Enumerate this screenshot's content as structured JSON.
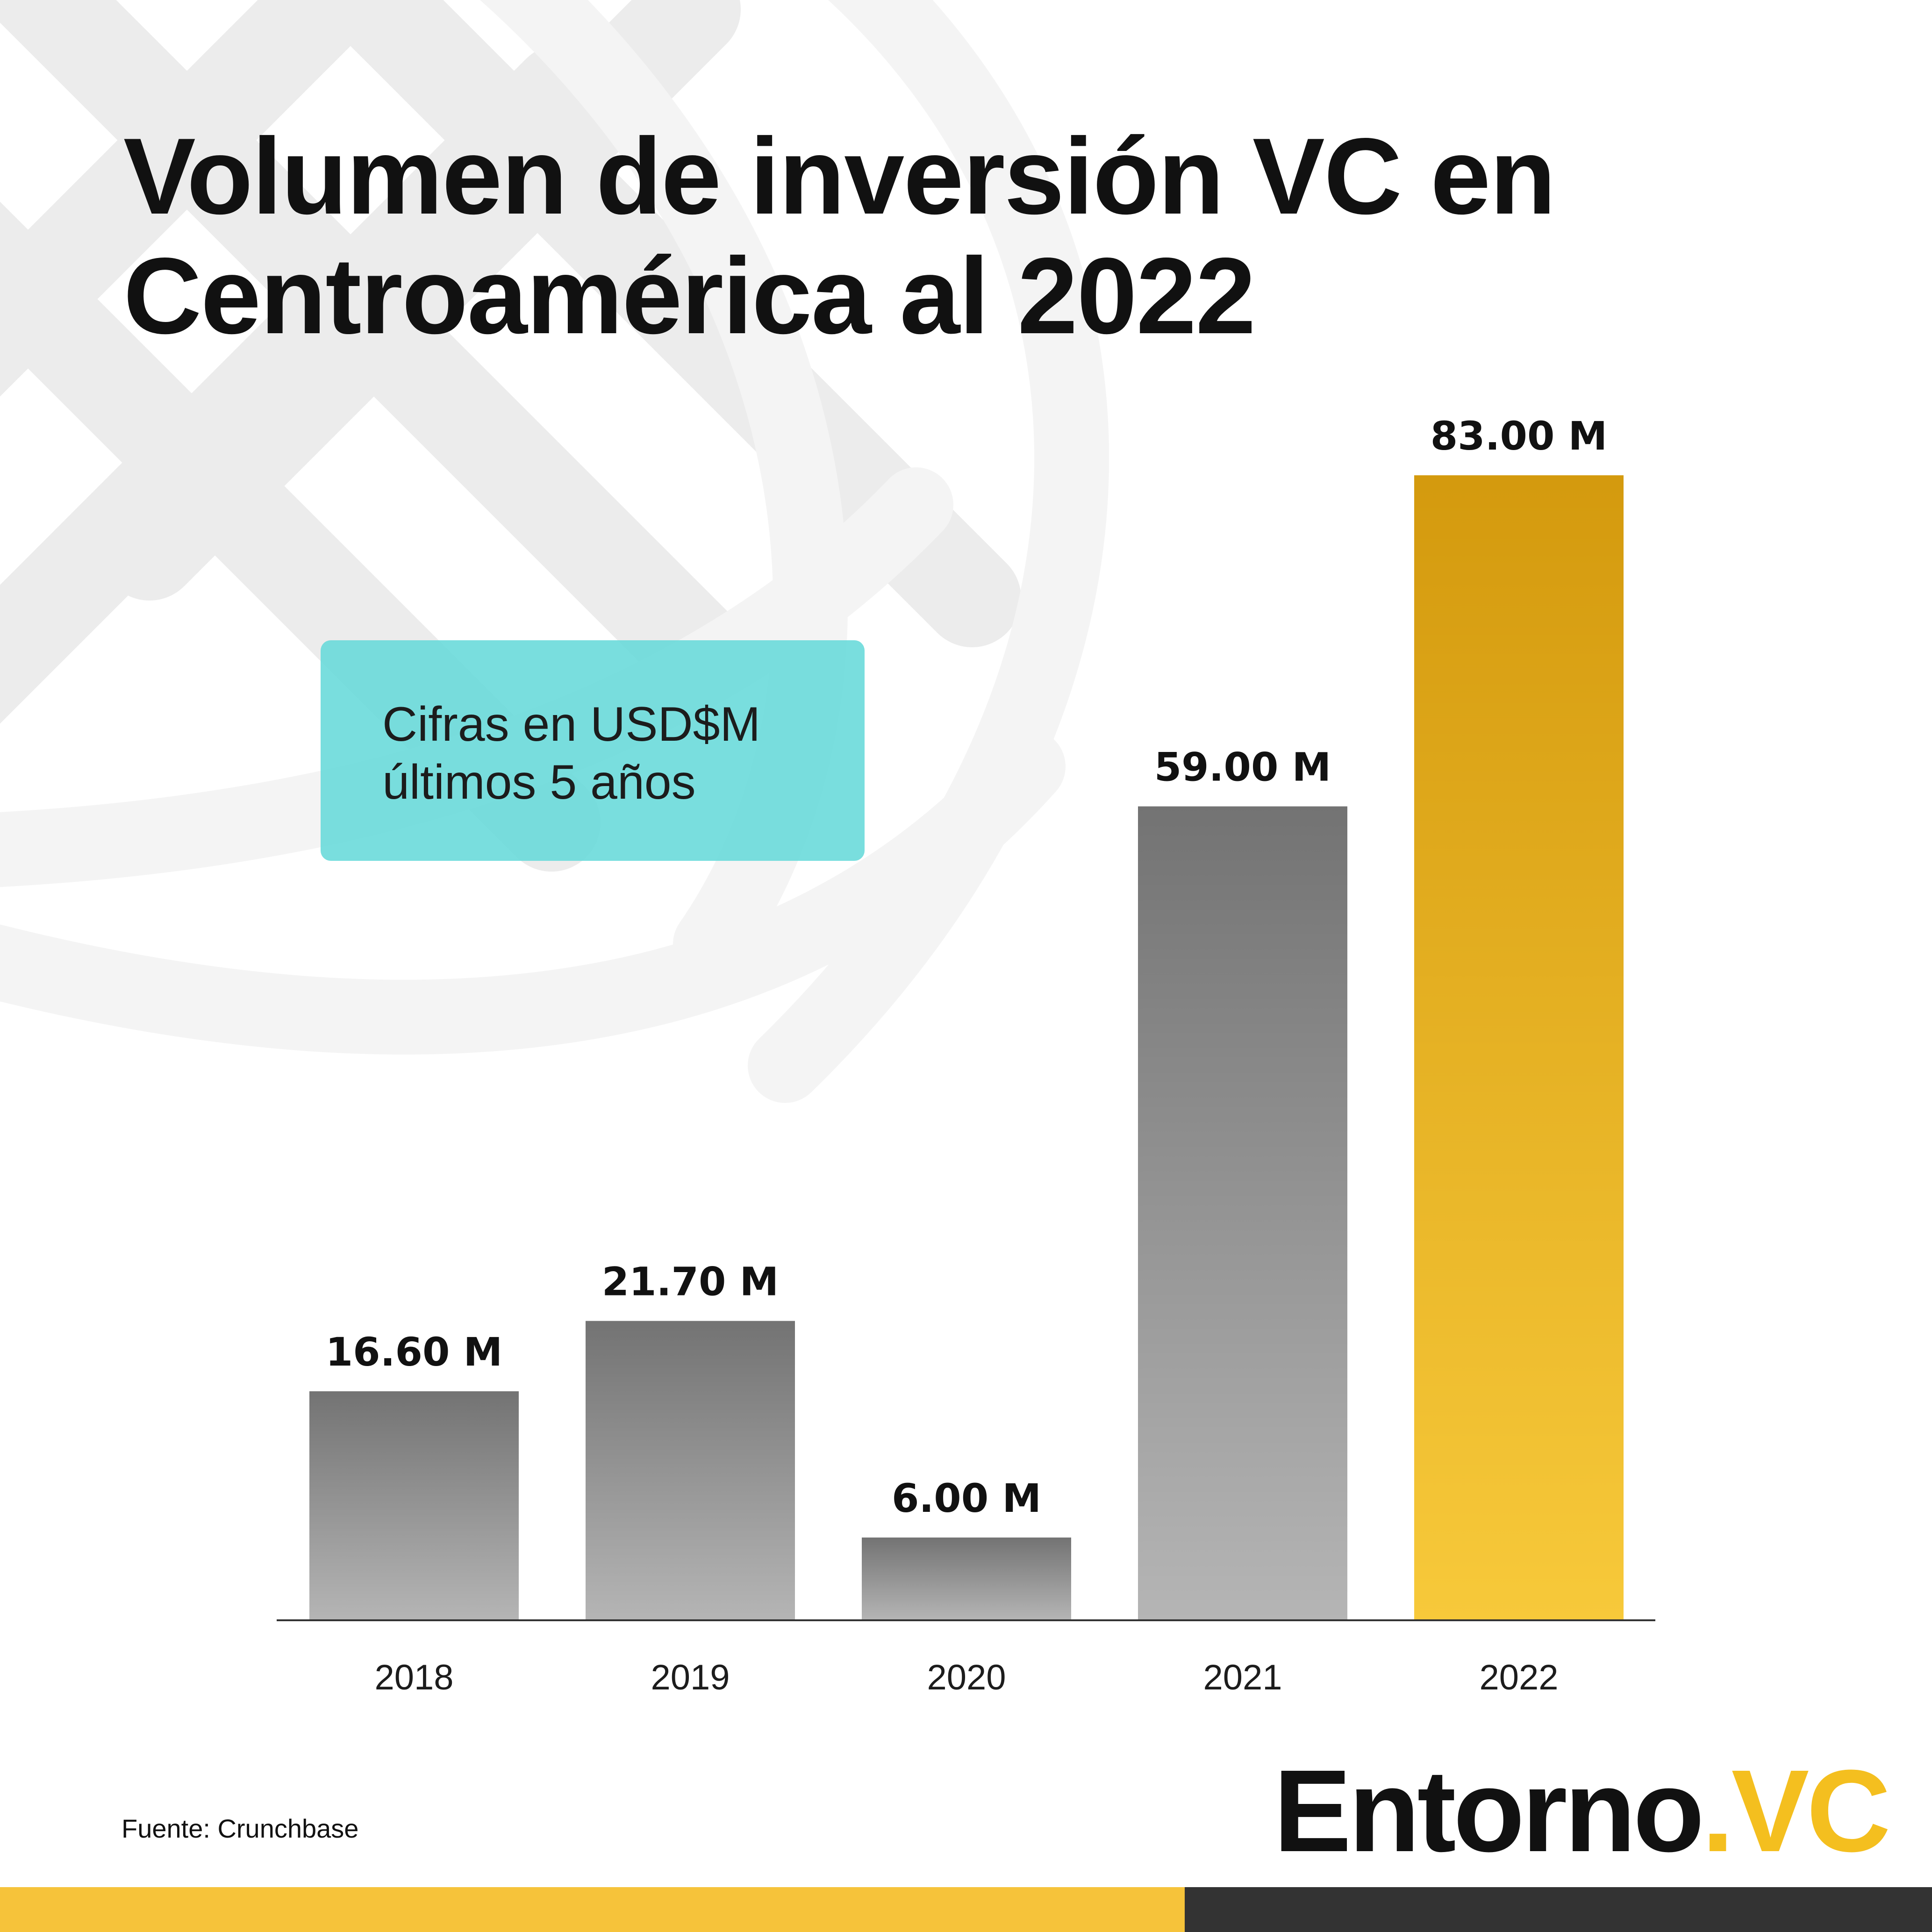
{
  "title": {
    "line1": "Volumen de inversión VC en",
    "line2": "Centroamérica al 2022"
  },
  "note": {
    "line1": "Cifras en USD$M",
    "line2": "últimos 5 años"
  },
  "source": "Fuente: Crunchbase",
  "logo": {
    "word": "Entorno",
    "dot": ".",
    "suffix": "VC"
  },
  "colors": {
    "highlight": "#f4bf1f",
    "bar_gray_top": "#737373",
    "bar_gray_bottom": "#b5b5b5",
    "bar_gold_top": "#d49a0e",
    "bar_gold_bottom": "#f7c93a",
    "note_box": "#66dada",
    "footer_yellow": "#f6c33a",
    "footer_dark": "#333333"
  },
  "chart_data": {
    "type": "bar",
    "categories": [
      "2018",
      "2019",
      "2020",
      "2021",
      "2022"
    ],
    "values": [
      16.6,
      21.7,
      6.0,
      59.0,
      83.0
    ],
    "data_labels": [
      "16.60 M",
      "21.70 M",
      "6.00 M",
      "59.00 M",
      "83.00 M"
    ],
    "highlight_index": 4,
    "title": "Volumen de inversión VC en Centroamérica al 2022",
    "xlabel": "",
    "ylabel": "",
    "ylim": [
      0,
      83
    ],
    "grid": false,
    "legend": "none"
  }
}
